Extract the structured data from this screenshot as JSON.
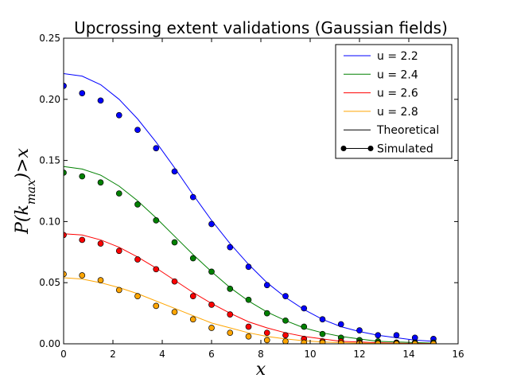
{
  "chart_data": {
    "type": "line",
    "title": "Upcrossing extent validations (Gaussian fields)",
    "xlabel": "x",
    "ylabel": "P(k_max) > x",
    "xlim": [
      0,
      16
    ],
    "ylim": [
      0,
      0.25
    ],
    "xticks": [
      "0",
      "2",
      "4",
      "6",
      "8",
      "10",
      "12",
      "14",
      "16"
    ],
    "yticks": [
      "0.00",
      "0.05",
      "0.10",
      "0.15",
      "0.20",
      "0.25"
    ],
    "grid": false,
    "legend_position": "top-right",
    "legend": [
      {
        "label": "u = 2.2",
        "color": "#0000ff",
        "style": "line"
      },
      {
        "label": "u = 2.4",
        "color": "#008000",
        "style": "line"
      },
      {
        "label": "u = 2.6",
        "color": "#ff0000",
        "style": "line"
      },
      {
        "label": "u = 2.8",
        "color": "#ffa500",
        "style": "line"
      },
      {
        "label": "Theoretical",
        "color": "#000000",
        "style": "line"
      },
      {
        "label": "Simulated",
        "color": "#000000",
        "style": "line-marker"
      }
    ],
    "series": [
      {
        "name": "u = 2.2",
        "color": "#0000ff",
        "theoretical": {
          "x": [
            0,
            0.75,
            1.5,
            2.25,
            3.0,
            3.75,
            4.5,
            5.25,
            6.0,
            6.75,
            7.5,
            8.25,
            9.0,
            9.75,
            10.5,
            11.25,
            12.0,
            12.75,
            13.5,
            14.25,
            15.0
          ],
          "y": [
            0.221,
            0.219,
            0.212,
            0.2,
            0.184,
            0.165,
            0.144,
            0.122,
            0.101,
            0.082,
            0.065,
            0.05,
            0.038,
            0.028,
            0.02,
            0.014,
            0.01,
            0.007,
            0.005,
            0.003,
            0.002
          ]
        },
        "simulated": {
          "x": [
            0,
            0.75,
            1.5,
            2.25,
            3.0,
            3.75,
            4.5,
            5.25,
            6.0,
            6.75,
            7.5,
            8.25,
            9.0,
            9.75,
            10.5,
            11.25,
            12.0,
            12.75,
            13.5,
            14.25,
            15.0
          ],
          "y": [
            0.211,
            0.205,
            0.199,
            0.187,
            0.175,
            0.16,
            0.141,
            0.12,
            0.098,
            0.079,
            0.063,
            0.048,
            0.039,
            0.029,
            0.02,
            0.016,
            0.011,
            0.007,
            0.007,
            0.005,
            0.004
          ]
        }
      },
      {
        "name": "u = 2.4",
        "color": "#008000",
        "theoretical": {
          "x": [
            0,
            0.75,
            1.5,
            2.25,
            3.0,
            3.75,
            4.5,
            5.25,
            6.0,
            6.75,
            7.5,
            8.25,
            9.0,
            9.75,
            10.5,
            11.25,
            12.0,
            12.75,
            13.5,
            14.25,
            15.0
          ],
          "y": [
            0.145,
            0.143,
            0.138,
            0.129,
            0.117,
            0.103,
            0.088,
            0.073,
            0.059,
            0.046,
            0.035,
            0.026,
            0.019,
            0.013,
            0.009,
            0.006,
            0.004,
            0.002,
            0.0015,
            0.001,
            0.0006
          ]
        },
        "simulated": {
          "x": [
            0,
            0.75,
            1.5,
            2.25,
            3.0,
            3.75,
            4.5,
            5.25,
            6.0,
            6.75,
            7.5,
            8.25,
            9.0,
            9.75,
            10.5,
            11.25,
            12.0,
            12.75,
            13.5,
            14.25,
            15.0
          ],
          "y": [
            0.14,
            0.137,
            0.132,
            0.123,
            0.114,
            0.101,
            0.083,
            0.07,
            0.059,
            0.045,
            0.036,
            0.025,
            0.019,
            0.014,
            0.008,
            0.005,
            0.003,
            0.002,
            0.001,
            0.001,
            0.001
          ]
        }
      },
      {
        "name": "u = 2.6",
        "color": "#ff0000",
        "theoretical": {
          "x": [
            0,
            0.75,
            1.5,
            2.25,
            3.0,
            3.75,
            4.5,
            5.25,
            6.0,
            6.75,
            7.5,
            8.25,
            9.0,
            9.75,
            10.5,
            11.25,
            12.0,
            12.75,
            13.5,
            14.25,
            15.0
          ],
          "y": [
            0.09,
            0.089,
            0.085,
            0.079,
            0.071,
            0.062,
            0.052,
            0.042,
            0.033,
            0.025,
            0.018,
            0.013,
            0.009,
            0.006,
            0.004,
            0.002,
            0.0015,
            0.0009,
            0.0005,
            0.0003,
            0.0002
          ]
        },
        "simulated": {
          "x": [
            0,
            0.75,
            1.5,
            2.25,
            3.0,
            3.75,
            4.5,
            5.25,
            6.0,
            6.75,
            7.5,
            8.25,
            9.0,
            9.75,
            10.5,
            11.25,
            12.0,
            12.75,
            13.5,
            14.25,
            15.0
          ],
          "y": [
            0.089,
            0.085,
            0.082,
            0.076,
            0.069,
            0.061,
            0.051,
            0.039,
            0.032,
            0.024,
            0.014,
            0.009,
            0.007,
            0.004,
            0.002,
            0.002,
            0.001,
            0.0005,
            0.0005,
            0.0003,
            0.0002
          ]
        }
      },
      {
        "name": "u = 2.8",
        "color": "#ffa500",
        "theoretical": {
          "x": [
            0,
            0.75,
            1.5,
            2.25,
            3.0,
            3.75,
            4.5,
            5.25,
            6.0,
            6.75,
            7.5,
            8.25,
            9.0,
            9.75,
            10.5,
            11.25,
            12.0,
            12.75,
            13.5,
            14.25,
            15.0
          ],
          "y": [
            0.054,
            0.053,
            0.05,
            0.046,
            0.041,
            0.035,
            0.029,
            0.023,
            0.017,
            0.013,
            0.009,
            0.006,
            0.004,
            0.0025,
            0.0015,
            0.001,
            0.0006,
            0.0003,
            0.0002,
            0.0001,
            0.0001
          ]
        },
        "simulated": {
          "x": [
            0,
            0.75,
            1.5,
            2.25,
            3.0,
            3.75,
            4.5,
            5.25,
            6.0,
            6.75,
            7.5,
            8.25,
            9.0,
            9.75,
            10.5,
            11.25,
            12.0,
            12.75,
            13.5,
            14.25,
            15.0
          ],
          "y": [
            0.057,
            0.056,
            0.052,
            0.044,
            0.039,
            0.031,
            0.026,
            0.02,
            0.013,
            0.009,
            0.006,
            0.003,
            0.002,
            0.001,
            0.001,
            0.0005,
            0.0003,
            0.0002,
            0.0001,
            0.0001,
            0.0001
          ]
        }
      }
    ]
  }
}
